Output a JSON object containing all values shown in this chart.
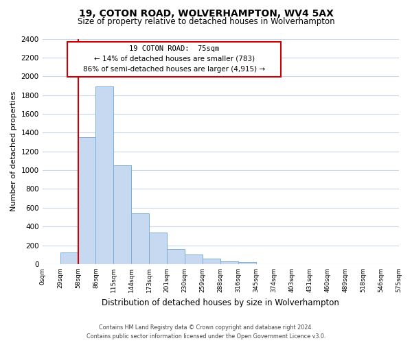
{
  "title": "19, COTON ROAD, WOLVERHAMPTON, WV4 5AX",
  "subtitle": "Size of property relative to detached houses in Wolverhampton",
  "xlabel": "Distribution of detached houses by size in Wolverhampton",
  "ylabel": "Number of detached properties",
  "bin_labels": [
    "0sqm",
    "29sqm",
    "58sqm",
    "86sqm",
    "115sqm",
    "144sqm",
    "173sqm",
    "201sqm",
    "230sqm",
    "259sqm",
    "288sqm",
    "316sqm",
    "345sqm",
    "374sqm",
    "403sqm",
    "431sqm",
    "460sqm",
    "489sqm",
    "518sqm",
    "546sqm",
    "575sqm"
  ],
  "bar_values": [
    0,
    125,
    1350,
    1890,
    1050,
    540,
    335,
    160,
    105,
    60,
    30,
    22,
    0,
    0,
    0,
    0,
    0,
    0,
    0,
    0
  ],
  "bar_color": "#c6d9f0",
  "bar_edge_color": "#7aaedb",
  "property_line_label": "19 COTON ROAD:  75sqm",
  "annotation_line1": "← 14% of detached houses are smaller (783)",
  "annotation_line2": "86% of semi-detached houses are larger (4,915) →",
  "annotation_box_color": "#ffffff",
  "annotation_box_edge": "#cc0000",
  "red_line_color": "#cc0000",
  "ylim": [
    0,
    2400
  ],
  "yticks": [
    0,
    200,
    400,
    600,
    800,
    1000,
    1200,
    1400,
    1600,
    1800,
    2000,
    2200,
    2400
  ],
  "footer_line1": "Contains HM Land Registry data © Crown copyright and database right 2024.",
  "footer_line2": "Contains public sector information licensed under the Open Government Licence v3.0.",
  "bg_color": "#ffffff",
  "grid_color": "#c8d8ec"
}
